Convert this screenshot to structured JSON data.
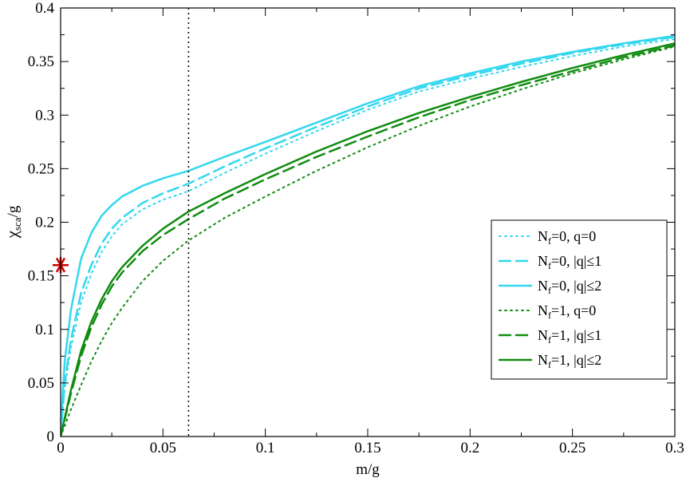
{
  "chart_data": {
    "type": "line",
    "xlabel": "m/g",
    "ylabel": {
      "main": "χ",
      "sub": "sca",
      "tail": "/g"
    },
    "xlim": [
      0,
      0.3
    ],
    "ylim": [
      0,
      0.4
    ],
    "x_ticks": [
      "0",
      "0.05",
      "0.1",
      "0.15",
      "0.2",
      "0.25",
      "0.3"
    ],
    "y_ticks": [
      "0",
      "0.05",
      "0.1",
      "0.15",
      "0.2",
      "0.25",
      "0.3",
      "0.35",
      "0.4"
    ],
    "grid": false,
    "legend_position": "right",
    "reference_line": {
      "x": 0.0625,
      "style": "dotted"
    },
    "marker": {
      "x": 0,
      "y": 0.16,
      "symbol": "asterisk",
      "color": "#cc0000"
    },
    "series": [
      {
        "name": "Nf=0, q=0",
        "label": {
          "pre": "N",
          "sub": "f",
          "post": "=0, q=0"
        },
        "color": "#33d7ee",
        "style": "dotted",
        "width": 2,
        "x": [
          0,
          0.002,
          0.005,
          0.01,
          0.015,
          0.02,
          0.025,
          0.03,
          0.04,
          0.05,
          0.0625,
          0.08,
          0.1,
          0.125,
          0.15,
          0.175,
          0.2,
          0.225,
          0.25,
          0.275,
          0.3
        ],
        "y": [
          0,
          0.045,
          0.083,
          0.125,
          0.152,
          0.172,
          0.187,
          0.198,
          0.212,
          0.221,
          0.229,
          0.246,
          0.264,
          0.285,
          0.305,
          0.322,
          0.334,
          0.345,
          0.355,
          0.364,
          0.371
        ]
      },
      {
        "name": "Nf=0, |q|≤1",
        "label": {
          "pre": "N",
          "sub": "f",
          "post": "=0, |q|≤1"
        },
        "color": "#33d7ee",
        "style": "dashed",
        "width": 2.5,
        "x": [
          0,
          0.002,
          0.005,
          0.01,
          0.015,
          0.02,
          0.025,
          0.03,
          0.04,
          0.05,
          0.0625,
          0.08,
          0.1,
          0.125,
          0.15,
          0.175,
          0.2,
          0.225,
          0.25,
          0.275,
          0.3
        ],
        "y": [
          0,
          0.05,
          0.09,
          0.134,
          0.16,
          0.18,
          0.194,
          0.204,
          0.218,
          0.227,
          0.236,
          0.252,
          0.269,
          0.289,
          0.308,
          0.325,
          0.337,
          0.348,
          0.358,
          0.366,
          0.373
        ]
      },
      {
        "name": "Nf=0, |q|≤2",
        "label": {
          "pre": "N",
          "sub": "f",
          "post": "=0, |q|≤2"
        },
        "color": "#33d7ee",
        "style": "solid",
        "width": 2.5,
        "x": [
          0,
          0.001,
          0.002,
          0.005,
          0.01,
          0.015,
          0.02,
          0.025,
          0.03,
          0.04,
          0.05,
          0.0625,
          0.08,
          0.1,
          0.125,
          0.15,
          0.175,
          0.2,
          0.225,
          0.25,
          0.275,
          0.3
        ],
        "y": [
          0,
          0.04,
          0.07,
          0.118,
          0.166,
          0.19,
          0.206,
          0.216,
          0.224,
          0.234,
          0.241,
          0.248,
          0.261,
          0.275,
          0.293,
          0.311,
          0.327,
          0.339,
          0.35,
          0.359,
          0.367,
          0.374
        ]
      },
      {
        "name": "Nf=1, q=0",
        "label": {
          "pre": "N",
          "sub": "f",
          "post": "=1, q=0"
        },
        "color": "#108c10",
        "style": "dotted",
        "width": 2,
        "x": [
          0,
          0.005,
          0.01,
          0.015,
          0.02,
          0.025,
          0.03,
          0.04,
          0.05,
          0.0625,
          0.08,
          0.1,
          0.125,
          0.15,
          0.175,
          0.2,
          0.225,
          0.25,
          0.275,
          0.3
        ],
        "y": [
          0,
          0.025,
          0.048,
          0.07,
          0.089,
          0.106,
          0.12,
          0.145,
          0.164,
          0.183,
          0.204,
          0.224,
          0.248,
          0.27,
          0.29,
          0.308,
          0.324,
          0.339,
          0.352,
          0.364
        ]
      },
      {
        "name": "Nf=1, |q|≤1",
        "label": {
          "pre": "N",
          "sub": "f",
          "post": "=1, |q|≤1"
        },
        "color": "#108c10",
        "style": "dashed",
        "width": 2.5,
        "x": [
          0,
          0.005,
          0.01,
          0.015,
          0.02,
          0.025,
          0.03,
          0.04,
          0.05,
          0.0625,
          0.08,
          0.1,
          0.125,
          0.15,
          0.175,
          0.2,
          0.225,
          0.25,
          0.275,
          0.3
        ],
        "y": [
          0,
          0.04,
          0.075,
          0.102,
          0.123,
          0.14,
          0.153,
          0.173,
          0.188,
          0.203,
          0.222,
          0.24,
          0.261,
          0.28,
          0.298,
          0.314,
          0.328,
          0.341,
          0.354,
          0.365
        ]
      },
      {
        "name": "Nf=1, |q|≤2",
        "label": {
          "pre": "N",
          "sub": "f",
          "post": "=1, |q|≤2"
        },
        "color": "#108c10",
        "style": "solid",
        "width": 2.5,
        "x": [
          0,
          0.005,
          0.01,
          0.015,
          0.02,
          0.025,
          0.03,
          0.04,
          0.05,
          0.0625,
          0.08,
          0.1,
          0.125,
          0.15,
          0.175,
          0.2,
          0.225,
          0.25,
          0.275,
          0.3
        ],
        "y": [
          0,
          0.043,
          0.08,
          0.107,
          0.128,
          0.145,
          0.158,
          0.178,
          0.194,
          0.21,
          0.227,
          0.245,
          0.266,
          0.285,
          0.302,
          0.317,
          0.331,
          0.344,
          0.356,
          0.367
        ]
      }
    ]
  }
}
